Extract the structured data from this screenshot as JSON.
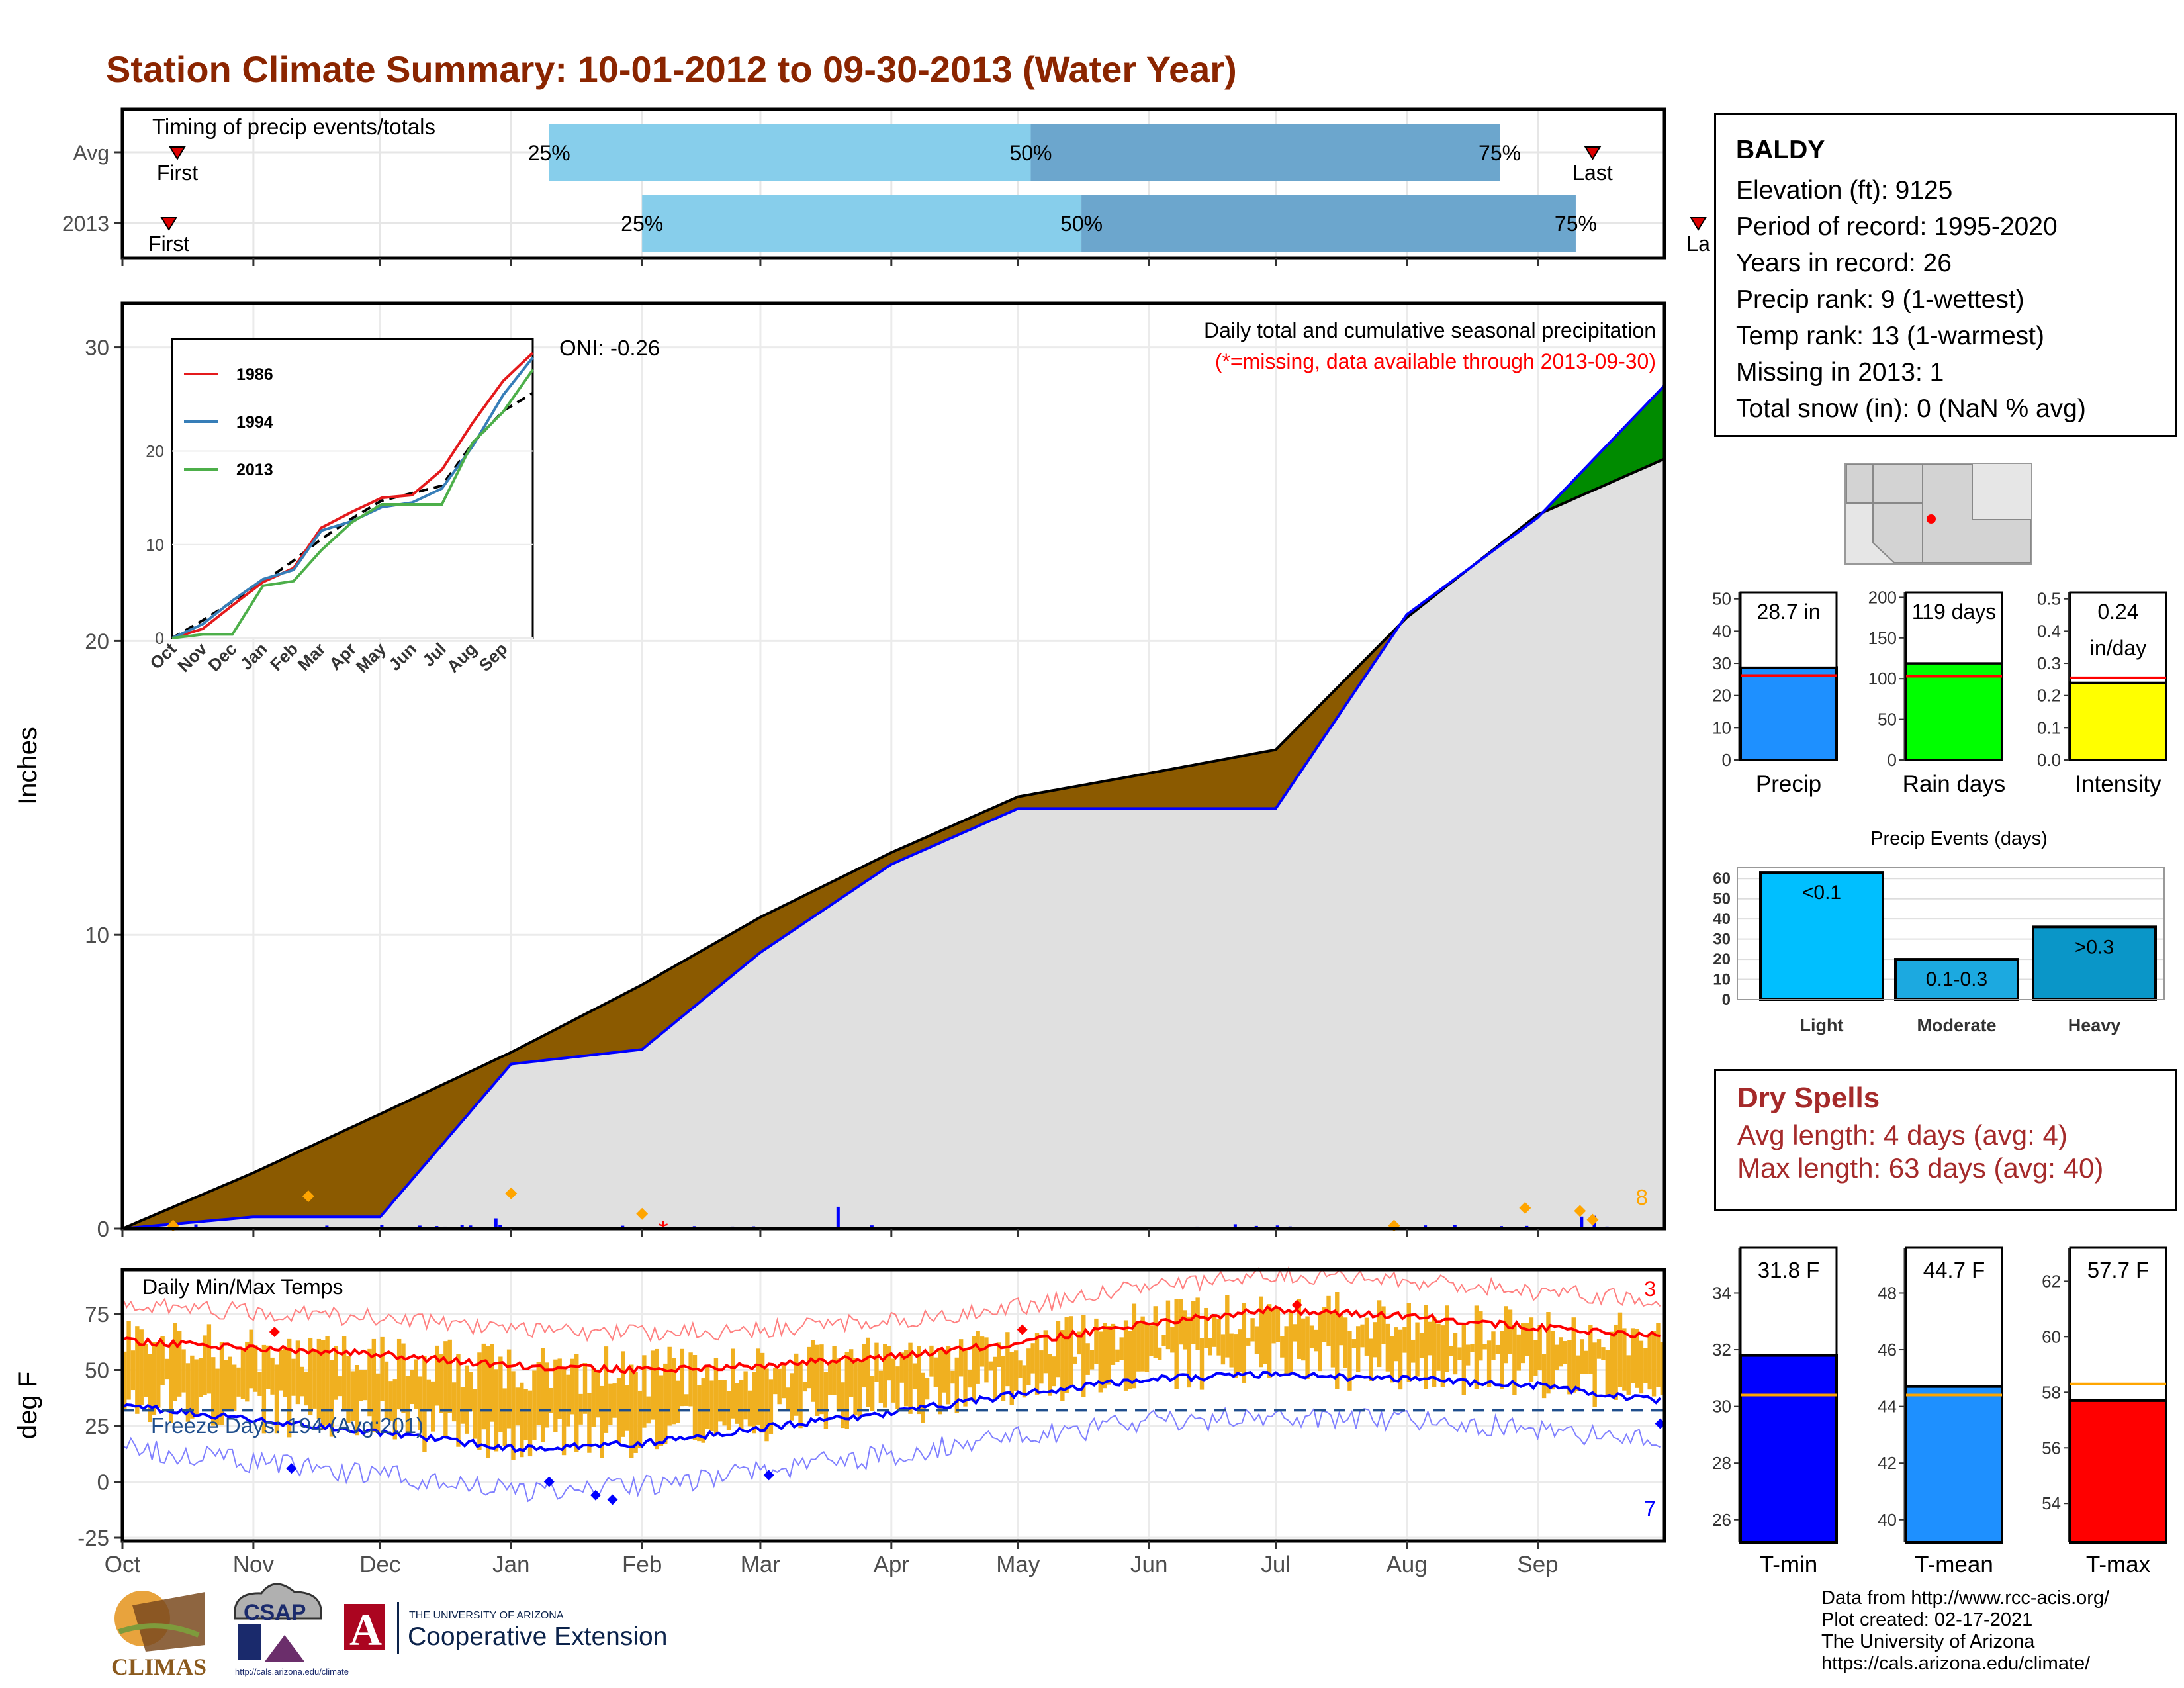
{
  "title": "Station Climate Summary: 10-01-2012 to 09-30-2013 (Water Year)",
  "timing": {
    "title": "Timing of precip events/totals",
    "rows": [
      {
        "label": "Avg",
        "first_day": 13,
        "p25_day": 101,
        "p50_day": 215,
        "p75_day": 326,
        "last_day": 348,
        "first_label": "First",
        "last_label": "Last"
      },
      {
        "label": "2013",
        "first_day": 11,
        "p25_day": 123,
        "p50_day": 227,
        "p75_day": 344,
        "last_day": 373,
        "first_label": "First",
        "last_label": "La"
      }
    ],
    "pct_labels": [
      "25%",
      "50%",
      "75%"
    ]
  },
  "precip_panel": {
    "ylabel": "Inches",
    "title_line1": "Daily total and cumulative seasonal precipitation",
    "title_line2": "(*=missing, data available through 2013-09-30)",
    "oni": "ONI: -0.26",
    "count_label": "8",
    "missing_marker": "*"
  },
  "inset": {
    "legend": [
      "1986",
      "1994",
      "2013"
    ],
    "colors": [
      "#E41A1C",
      "#377EB8",
      "#4DAF4A"
    ]
  },
  "temp_panel": {
    "ylabel": "deg F",
    "title": "Daily Min/Max Temps",
    "freeze_label": "Freeze Days: 194 (Avg:201)",
    "max_count": "3",
    "min_count": "7"
  },
  "month_labels": [
    "Oct",
    "Nov",
    "Dec",
    "Jan",
    "Feb",
    "Mar",
    "Apr",
    "May",
    "Jun",
    "Jul",
    "Aug",
    "Sep"
  ],
  "station": {
    "name": "BALDY",
    "lines": [
      "Elevation (ft): 9125",
      "Period of record: 1995-2020",
      "Years in record: 26",
      "Precip rank: 9 (1-wettest)",
      "Temp rank: 13 (1-warmest)",
      "Missing in 2013: 1",
      "Total snow (in): 0 (NaN % avg)"
    ]
  },
  "mini_bars": [
    {
      "label": "Precip",
      "text1": "28.7 in",
      "text2": "",
      "value": 28.7,
      "avg": 26.2,
      "ymax": 52,
      "ticks": [
        0,
        10,
        20,
        30,
        40,
        50
      ],
      "color": "#1E90FF"
    },
    {
      "label": "Rain days",
      "text1": "119 days",
      "text2": "",
      "value": 119,
      "avg": 103,
      "ymax": 206,
      "ticks": [
        0,
        50,
        100,
        150,
        200
      ],
      "color": "#00FF00"
    },
    {
      "label": "Intensity",
      "text1": "0.24",
      "text2": "in/day",
      "value": 0.24,
      "avg": 0.255,
      "ymax": 0.52,
      "ticks": [
        0.0,
        0.1,
        0.2,
        0.3,
        0.4,
        0.5
      ],
      "color": "#FFFF00"
    }
  ],
  "precip_events": {
    "title": "Precip Events (days)",
    "categories": [
      "Light",
      "Moderate",
      "Heavy"
    ],
    "values": [
      63,
      20,
      36
    ],
    "labels": [
      "<0.1",
      "0.1-0.3",
      ">0.3"
    ],
    "colors": [
      "#00BFFF",
      "#1CA9E0",
      "#0A96C8"
    ],
    "ticks": [
      0,
      10,
      20,
      30,
      40,
      50,
      60
    ]
  },
  "dry_spells": {
    "title": "Dry Spells",
    "avg": "Avg length: 4 days (avg: 4)",
    "max": "Max length: 63 days (avg: 40)"
  },
  "temp_bars": [
    {
      "label": "T-min",
      "text": "31.8 F",
      "value": 31.8,
      "avg": 30.4,
      "ymin": 25.2,
      "ymax": 35.6,
      "ticks": [
        26,
        28,
        30,
        32,
        34
      ],
      "color": "#0000FF"
    },
    {
      "label": "T-mean",
      "text": "44.7 F",
      "value": 44.7,
      "avg": 44.4,
      "ymin": 39.2,
      "ymax": 49.6,
      "ticks": [
        40,
        42,
        44,
        46,
        48
      ],
      "color": "#1E90FF"
    },
    {
      "label": "T-max",
      "text": "57.7 F",
      "value": 57.7,
      "avg": 58.3,
      "ymin": 52.6,
      "ymax": 63.2,
      "ticks": [
        54,
        56,
        58,
        60,
        62
      ],
      "color": "#FF0000"
    }
  ],
  "credits": [
    "Data from http://www.rcc-acis.org/",
    "Plot created: 02-17-2021",
    "The University of Arizona",
    "https://cals.arizona.edu/climate/"
  ],
  "logos": {
    "climas": "CLIMAS",
    "csap": "CSAP",
    "csap_url": "http://cals.arizona.edu/climate",
    "ua_small": "THE UNIVERSITY OF ARIZONA",
    "ua_big": "Cooperative Extension",
    "ua_letter": "A"
  },
  "chart_data": [
    {
      "type": "line",
      "title": "Daily total and cumulative seasonal precipitation",
      "ylabel": "Inches",
      "ylim": [
        0,
        30
      ],
      "x": [
        "Oct",
        "Nov",
        "Dec",
        "Jan",
        "Feb",
        "Mar",
        "Apr",
        "May",
        "Jun",
        "Jul",
        "Aug",
        "Sep",
        "Sep 30"
      ],
      "series": [
        {
          "values": [
            0,
            1.9,
            3.9,
            6.0,
            8.3,
            10.6,
            12.8,
            14.7,
            15.5,
            16.3,
            20.8,
            24.3,
            26.2
          ]
        },
        {
          "values": [
            0,
            0.4,
            0.4,
            5.6,
            6.1,
            9.4,
            12.4,
            14.3,
            14.3,
            14.3,
            20.9,
            24.2,
            28.7
          ]
        }
      ]
    },
    {
      "type": "line",
      "ylabel": "Inches",
      "ylim": [
        0,
        32
      ],
      "x": [
        "Oct",
        "Nov",
        "Dec",
        "Jan",
        "Feb",
        "Mar",
        "Apr",
        "May",
        "Jun",
        "Jul",
        "Aug",
        "Sep",
        "Sep 30"
      ],
      "series": [
        {
          "name": "1986",
          "values": [
            0,
            1.0,
            3.5,
            6.0,
            7.5,
            11.8,
            13.5,
            15.0,
            15.3,
            18.0,
            23.0,
            27.5,
            30.5
          ]
        },
        {
          "name": "1994",
          "values": [
            0,
            1.5,
            4.0,
            6.3,
            7.3,
            11.5,
            12.5,
            14.0,
            14.5,
            16.0,
            20.5,
            26.0,
            30.0
          ]
        },
        {
          "name": "2013",
          "values": [
            0,
            0.4,
            0.4,
            5.6,
            6.1,
            9.4,
            12.4,
            14.3,
            14.3,
            14.3,
            20.9,
            24.2,
            28.7
          ]
        }
      ]
    },
    {
      "type": "line",
      "title": "Daily Min/Max Temps",
      "ylabel": "deg F",
      "ylim": [
        -25,
        90
      ],
      "x": [
        "Oct",
        "Nov",
        "Dec",
        "Jan",
        "Feb",
        "Mar",
        "Apr",
        "May",
        "Jun",
        "Jul",
        "Aug",
        "Sep",
        "Sep 30"
      ],
      "series": [
        {
          "values": [
            63,
            60,
            57,
            52,
            50,
            52,
            56,
            62,
            71,
            77,
            74,
            69,
            65
          ]
        },
        {
          "values": [
            34,
            28,
            22,
            15,
            17,
            24,
            31,
            39,
            46,
            48,
            46,
            43,
            36
          ]
        }
      ],
      "freeze_line": 32
    },
    {
      "type": "bar",
      "title": "Precip Events (days)",
      "categories": [
        "Light",
        "Moderate",
        "Heavy"
      ],
      "values": [
        63,
        20,
        36
      ]
    }
  ]
}
